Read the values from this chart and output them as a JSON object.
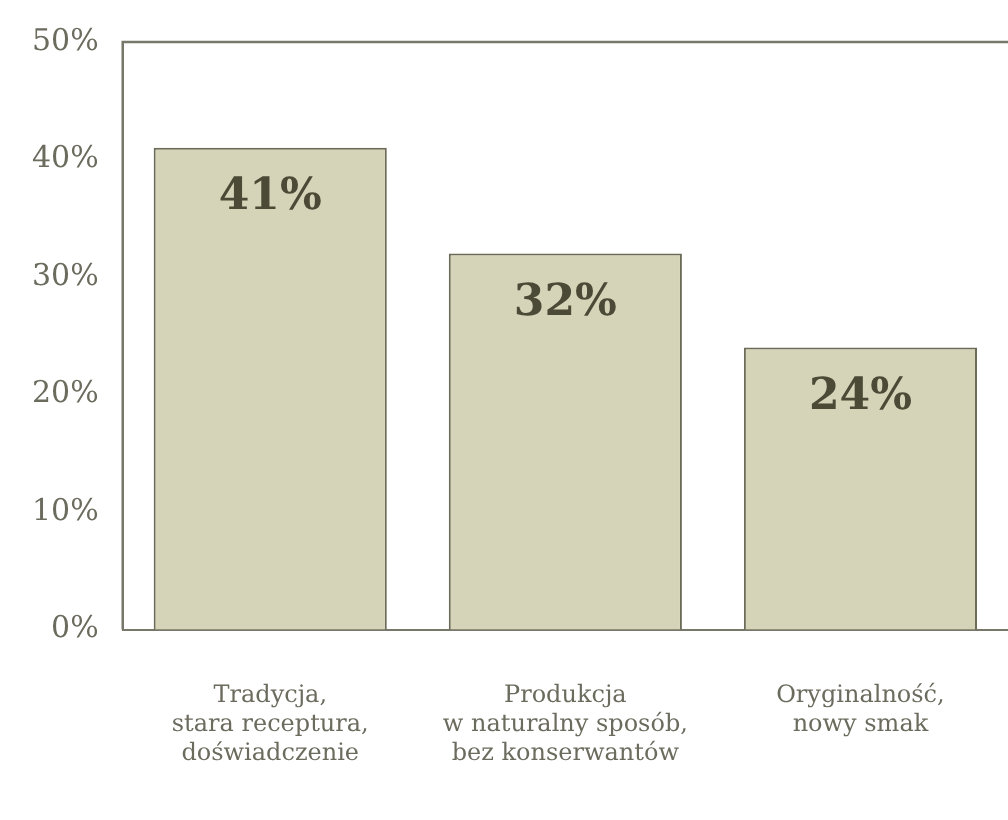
{
  "chart_data": {
    "type": "bar",
    "categories": [
      "Tradycja,\nstara receptura,\ndoświadczenie",
      "Produkcja\nw naturalny sposób,\nbez konserwantów",
      "Oryginalność,\nnowy smak"
    ],
    "values": [
      41,
      32,
      24
    ],
    "value_labels": [
      "41%",
      "32%",
      "24%"
    ],
    "color": "#d6d4b8",
    "ylim": [
      0,
      50
    ],
    "yticks": [
      {
        "value": 0,
        "label": "0%"
      },
      {
        "value": 10,
        "label": "10%"
      },
      {
        "value": 20,
        "label": "20%"
      },
      {
        "value": 30,
        "label": "30%"
      },
      {
        "value": 40,
        "label": "40%"
      },
      {
        "value": 50,
        "label": "50%"
      }
    ],
    "grid": false,
    "legend": false
  }
}
